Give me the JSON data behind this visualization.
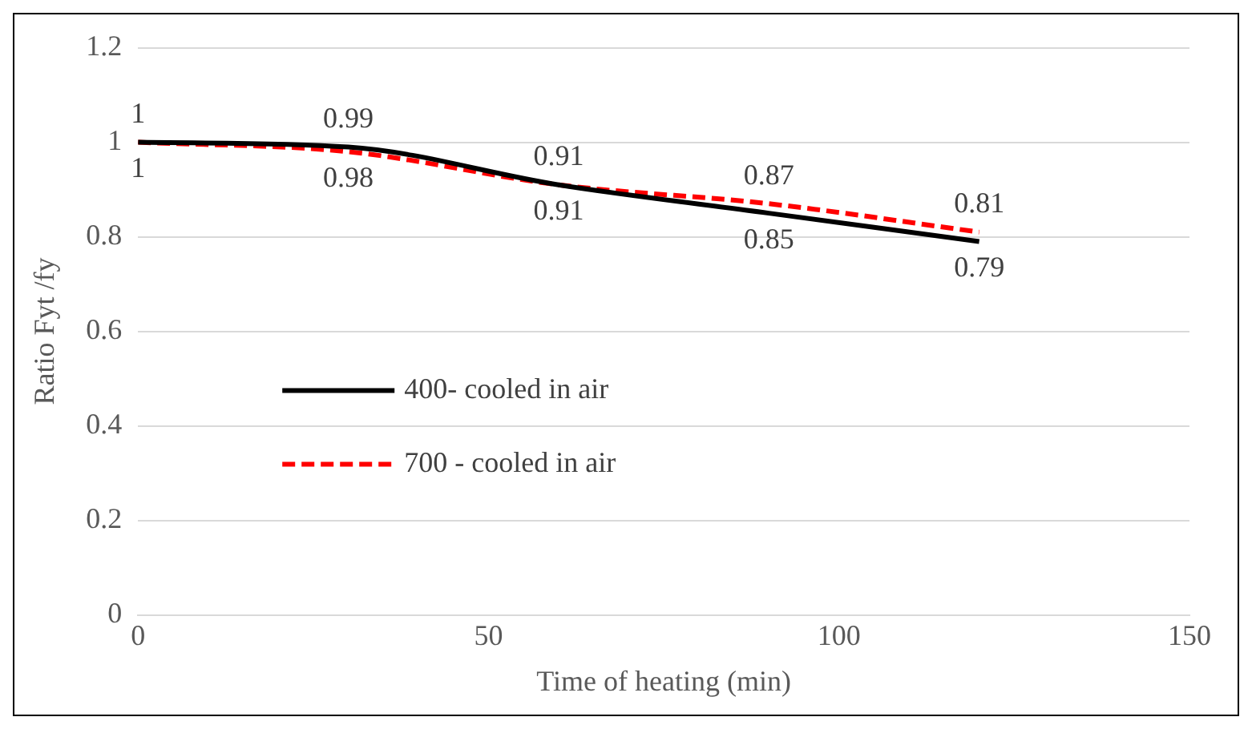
{
  "chart_data": {
    "type": "line",
    "xlabel": "Time of heating (min)",
    "ylabel": "Ratio Fyt /fy",
    "x": [
      0,
      30,
      60,
      90,
      120
    ],
    "series": [
      {
        "name": "400- cooled in air",
        "color": "#000000",
        "values": [
          1,
          0.99,
          0.91,
          0.85,
          0.79
        ],
        "line_style": "solid"
      },
      {
        "name": "700 - cooled in air",
        "color": "#ff0000",
        "values": [
          1,
          0.98,
          0.91,
          0.87,
          0.81
        ],
        "line_style": "dashed"
      }
    ],
    "xlim": [
      0,
      150
    ],
    "xticks": [
      0,
      50,
      100,
      150
    ],
    "ylim": [
      0,
      1.2
    ],
    "yticks": [
      0,
      0.2,
      0.4,
      0.6,
      0.8,
      1,
      1.2
    ],
    "grid": "y",
    "legend": "center left",
    "data_labels": true,
    "marker": "none"
  }
}
